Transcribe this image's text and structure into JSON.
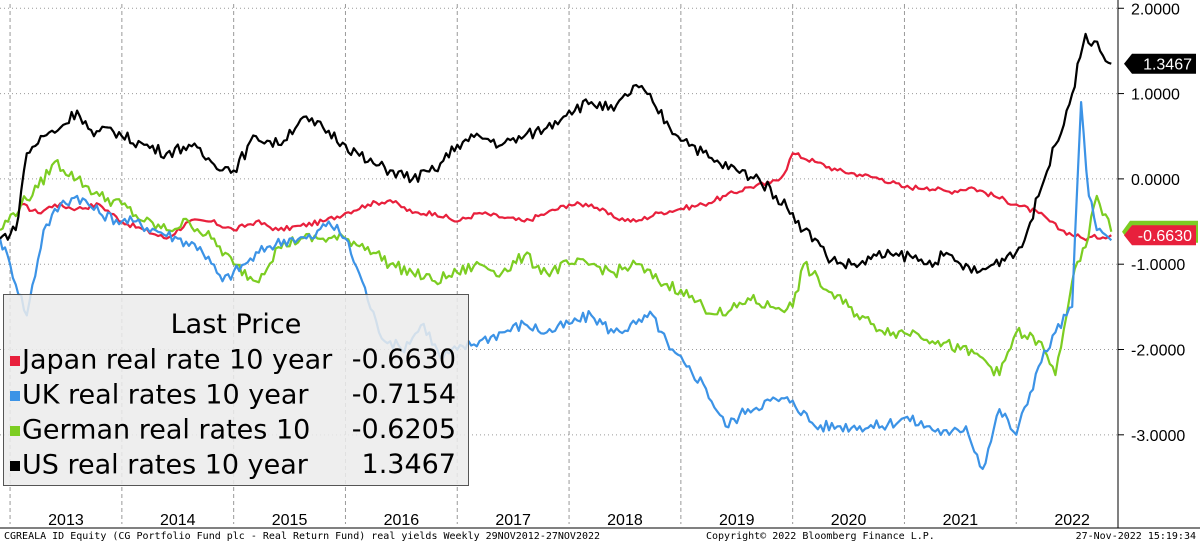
{
  "footer": {
    "left": "CGREALA ID Equity (CG Portfolio Fund plc - Real Return Fund) real yields  Weekly 29NOV2012-27NOV2022",
    "center": "Copyright© 2022 Bloomberg Finance L.P.",
    "right": "27-Nov-2022 15:19:34"
  },
  "chart_data": {
    "type": "line",
    "title": "",
    "xlabel": "",
    "ylabel": "",
    "ylim": [
      -3.6,
      2.05
    ],
    "yticks": [
      "2.0000",
      "1.0000",
      "0.0000",
      "-1.0000",
      "-2.0000",
      "-3.0000"
    ],
    "ytick_values": [
      2,
      1,
      0,
      -1,
      -2,
      -3
    ],
    "xticks": [
      "2013",
      "2014",
      "2015",
      "2016",
      "2017",
      "2018",
      "2019",
      "2020",
      "2021",
      "2022"
    ],
    "x_range": [
      2012.91,
      2022.91
    ],
    "grid": "vertical dashed, horizontal dotted",
    "legend_placement": "bottom-left",
    "legend_title": "Last Price",
    "price_tags": [
      "1.3467",
      "-0.6630"
    ],
    "series": [
      {
        "name": "Japan real rate 10 year",
        "last_value": "-0.6630",
        "color": "#e8203c",
        "x": [
          2013.1,
          2013.25,
          2013.4,
          2013.6,
          2013.8,
          2014.0,
          2014.2,
          2014.4,
          2014.6,
          2014.8,
          2015.0,
          2015.2,
          2015.4,
          2015.6,
          2015.8,
          2016.0,
          2016.2,
          2016.4,
          2016.6,
          2016.8,
          2017.0,
          2017.2,
          2017.4,
          2017.6,
          2017.8,
          2018.0,
          2018.2,
          2018.4,
          2018.6,
          2018.8,
          2019.0,
          2019.2,
          2019.4,
          2019.6,
          2019.8,
          2019.92,
          2020.0,
          2020.2,
          2020.4,
          2020.6,
          2020.8,
          2021.0,
          2021.2,
          2021.4,
          2021.6,
          2021.8,
          2022.0,
          2022.2,
          2022.4,
          2022.6,
          2022.85
        ],
        "y": [
          -0.3,
          -0.4,
          -0.3,
          -0.35,
          -0.3,
          -0.5,
          -0.6,
          -0.7,
          -0.5,
          -0.5,
          -0.6,
          -0.5,
          -0.6,
          -0.55,
          -0.5,
          -0.4,
          -0.3,
          -0.25,
          -0.4,
          -0.4,
          -0.5,
          -0.4,
          -0.45,
          -0.5,
          -0.4,
          -0.3,
          -0.3,
          -0.45,
          -0.5,
          -0.4,
          -0.35,
          -0.3,
          -0.2,
          -0.1,
          -0.05,
          0.05,
          0.3,
          0.2,
          0.1,
          0.05,
          0.0,
          -0.1,
          -0.1,
          -0.15,
          -0.1,
          -0.2,
          -0.3,
          -0.4,
          -0.6,
          -0.7,
          -0.66
        ]
      },
      {
        "name": "UK real rates 10 year",
        "last_value": "-0.7154",
        "color": "#3c93e6",
        "x": [
          2012.91,
          2013.0,
          2013.15,
          2013.3,
          2013.45,
          2013.6,
          2013.8,
          2014.0,
          2014.1,
          2014.3,
          2014.5,
          2014.7,
          2014.9,
          2015.1,
          2015.3,
          2015.5,
          2015.7,
          2015.85,
          2016.0,
          2016.15,
          2016.3,
          2016.5,
          2016.7,
          2016.85,
          2017.0,
          2017.2,
          2017.4,
          2017.6,
          2017.8,
          2018.0,
          2018.2,
          2018.4,
          2018.6,
          2018.75,
          2018.9,
          2019.05,
          2019.2,
          2019.4,
          2019.6,
          2019.8,
          2020.0,
          2020.2,
          2020.4,
          2020.6,
          2020.8,
          2021.0,
          2021.2,
          2021.4,
          2021.55,
          2021.7,
          2021.85,
          2022.0,
          2022.2,
          2022.35,
          2022.5,
          2022.58,
          2022.65,
          2022.72,
          2022.85
        ],
        "y": [
          -0.7,
          -1.0,
          -1.6,
          -0.6,
          -0.3,
          -0.2,
          -0.4,
          -0.5,
          -0.5,
          -0.6,
          -0.7,
          -0.8,
          -1.2,
          -1.0,
          -0.8,
          -0.7,
          -0.7,
          -0.5,
          -0.7,
          -1.2,
          -1.8,
          -2.0,
          -1.7,
          -2.1,
          -2.0,
          -1.9,
          -1.8,
          -1.7,
          -1.8,
          -1.7,
          -1.6,
          -1.8,
          -1.7,
          -1.6,
          -2.0,
          -2.2,
          -2.4,
          -2.9,
          -2.7,
          -2.6,
          -2.6,
          -2.9,
          -2.9,
          -2.9,
          -2.9,
          -2.8,
          -2.9,
          -3.0,
          -2.9,
          -3.4,
          -2.7,
          -3.0,
          -2.2,
          -1.8,
          -1.5,
          0.9,
          -0.2,
          -0.6,
          -0.72
        ]
      },
      {
        "name": "German real rates 10",
        "last_value": "-0.6205",
        "color": "#7ccd22",
        "x": [
          2012.91,
          2013.1,
          2013.25,
          2013.4,
          2013.6,
          2013.8,
          2014.0,
          2014.2,
          2014.4,
          2014.6,
          2014.8,
          2015.0,
          2015.2,
          2015.4,
          2015.6,
          2015.8,
          2016.0,
          2016.2,
          2016.4,
          2016.6,
          2016.8,
          2017.0,
          2017.2,
          2017.4,
          2017.6,
          2017.8,
          2018.0,
          2018.2,
          2018.4,
          2018.6,
          2018.8,
          2019.0,
          2019.2,
          2019.4,
          2019.6,
          2019.8,
          2020.0,
          2020.1,
          2020.3,
          2020.5,
          2020.7,
          2020.9,
          2021.1,
          2021.3,
          2021.5,
          2021.7,
          2021.85,
          2022.0,
          2022.2,
          2022.35,
          2022.5,
          2022.62,
          2022.72,
          2022.85
        ],
        "y": [
          -0.6,
          -0.3,
          -0.1,
          0.2,
          0.0,
          -0.2,
          -0.3,
          -0.5,
          -0.6,
          -0.5,
          -0.7,
          -1.0,
          -1.2,
          -0.8,
          -0.7,
          -0.7,
          -0.7,
          -0.8,
          -1.0,
          -1.1,
          -1.2,
          -1.1,
          -1.0,
          -1.1,
          -0.9,
          -1.1,
          -1.0,
          -1.0,
          -1.1,
          -1.0,
          -1.2,
          -1.3,
          -1.5,
          -1.6,
          -1.4,
          -1.5,
          -1.5,
          -1.0,
          -1.3,
          -1.5,
          -1.7,
          -1.8,
          -1.8,
          -1.9,
          -2.0,
          -2.1,
          -2.3,
          -1.8,
          -1.9,
          -2.3,
          -1.2,
          -0.8,
          -0.2,
          -0.62
        ]
      },
      {
        "name": "US real rates 10 year",
        "last_value": "1.3467",
        "color": "#000000",
        "x": [
          2012.91,
          2013.05,
          2013.15,
          2013.3,
          2013.45,
          2013.6,
          2013.75,
          2013.9,
          2014.0,
          2014.2,
          2014.4,
          2014.6,
          2014.8,
          2015.0,
          2015.2,
          2015.4,
          2015.6,
          2015.8,
          2016.0,
          2016.2,
          2016.4,
          2016.6,
          2016.8,
          2017.0,
          2017.2,
          2017.4,
          2017.6,
          2017.8,
          2018.0,
          2018.2,
          2018.4,
          2018.6,
          2018.75,
          2018.9,
          2019.1,
          2019.3,
          2019.5,
          2019.7,
          2019.85,
          2020.0,
          2020.1,
          2020.2,
          2020.3,
          2020.45,
          2020.6,
          2020.75,
          2020.9,
          2021.05,
          2021.2,
          2021.35,
          2021.5,
          2021.65,
          2021.8,
          2021.92,
          2022.05,
          2022.2,
          2022.35,
          2022.5,
          2022.62,
          2022.75,
          2022.85
        ],
        "y": [
          -0.7,
          -0.6,
          0.3,
          0.5,
          0.6,
          0.8,
          0.5,
          0.6,
          0.5,
          0.4,
          0.3,
          0.4,
          0.2,
          0.1,
          0.5,
          0.4,
          0.7,
          0.6,
          0.4,
          0.2,
          0.1,
          0.0,
          0.1,
          0.4,
          0.5,
          0.4,
          0.5,
          0.6,
          0.8,
          0.9,
          0.8,
          1.1,
          0.9,
          0.6,
          0.4,
          0.2,
          0.1,
          0.0,
          -0.2,
          -0.4,
          -0.6,
          -0.7,
          -0.9,
          -1.0,
          -1.0,
          -0.9,
          -0.9,
          -0.9,
          -1.0,
          -0.9,
          -1.0,
          -1.1,
          -1.0,
          -0.9,
          -0.8,
          -0.2,
          0.4,
          1.0,
          1.7,
          1.5,
          1.35
        ]
      }
    ]
  }
}
